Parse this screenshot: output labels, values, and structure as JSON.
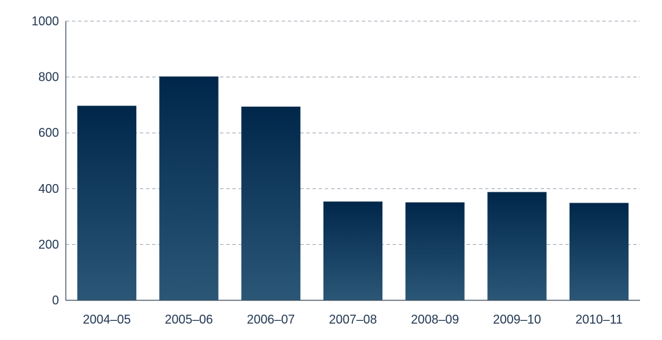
{
  "chart_data": {
    "type": "bar",
    "title": "",
    "xlabel": "",
    "ylabel": "",
    "categories": [
      "2004–05",
      "2005–06",
      "2006–07",
      "2007–08",
      "2008–09",
      "2009–10",
      "2010–11"
    ],
    "values": [
      697,
      802,
      694,
      354,
      351,
      388,
      349
    ],
    "ylim": [
      0,
      1000
    ],
    "yticks": [
      0,
      200,
      400,
      600,
      800,
      1000
    ],
    "grid": true,
    "legend": "none",
    "colors": {
      "bar_top": "#00274a",
      "bar_bottom": "#2b5777",
      "tick_text": "#1f3550",
      "grid": "#9aa5b1"
    }
  }
}
